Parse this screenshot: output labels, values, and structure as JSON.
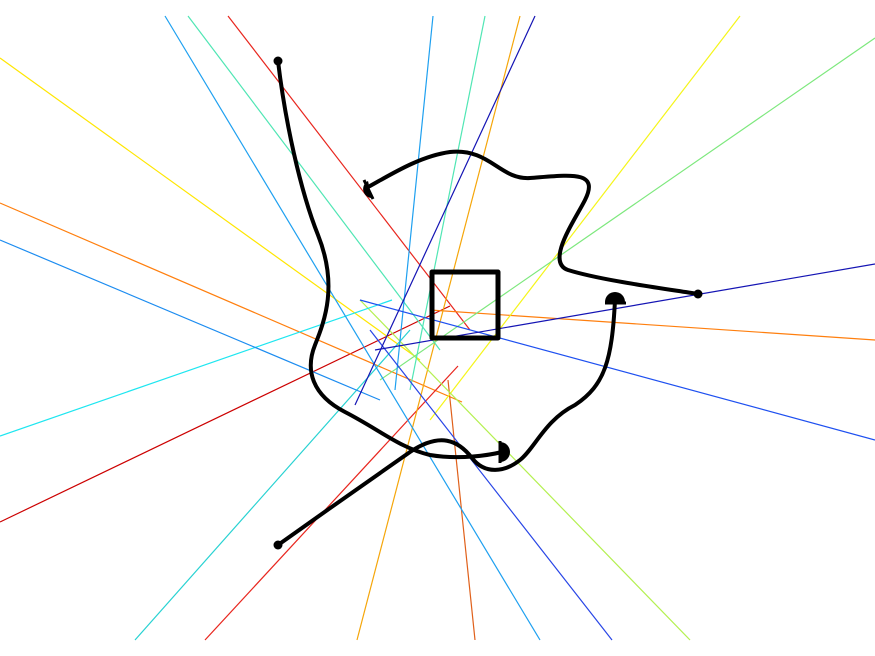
{
  "line_colors": {
    "red": "#e8261e",
    "dark_red": "#cc0000",
    "orange": "#ff7f0e",
    "burnt_orange": "#e0601a",
    "amber": "#f5a60a",
    "yellow": "#ffe600",
    "lemon": "#f5f51a",
    "lime": "#b4f050",
    "light_green": "#7de87d",
    "mint": "#50e6b4",
    "cyan": "#1ee6f0",
    "turquoise": "#28d2d2",
    "sky_blue": "#1ea0f0",
    "azure": "#1c8cf0",
    "blue": "#1e50f0",
    "royal_blue": "#2845e6",
    "navy": "#1414b4",
    "black": "#000000"
  },
  "icons": {
    "square": "square-icon",
    "endpoints": [
      "dot-icon",
      "semicircle-cap-icon"
    ]
  }
}
